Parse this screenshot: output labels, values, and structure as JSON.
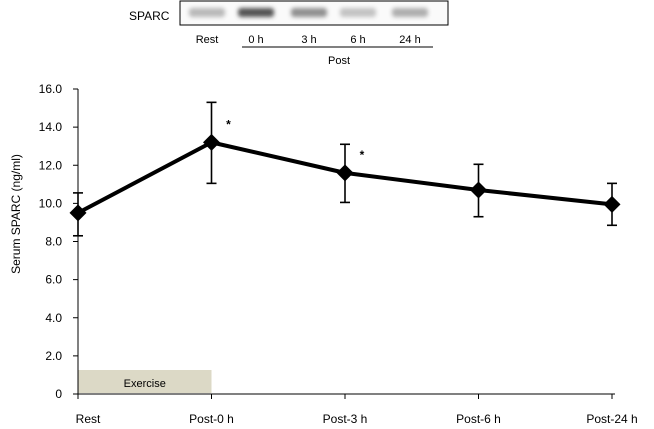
{
  "blot": {
    "protein_label": "SPARC",
    "lanes": [
      "Rest",
      "0 h",
      "3 h",
      "6 h",
      "24 h"
    ],
    "post_label": "Post",
    "band_intensities": [
      0.35,
      0.85,
      0.55,
      0.3,
      0.4
    ]
  },
  "chart_data": {
    "type": "line",
    "categories": [
      "Rest",
      "Post-0 h",
      "Post-3 h",
      "Post-6 h",
      "Post-24 h"
    ],
    "series": [
      {
        "values": [
          9.5,
          13.2,
          11.6,
          10.7,
          9.95
        ],
        "error_low": [
          8.3,
          11.05,
          10.05,
          9.3,
          8.85
        ],
        "error_high": [
          10.55,
          15.3,
          13.1,
          12.05,
          11.05
        ],
        "color": "#000000",
        "marker": "diamond"
      }
    ],
    "ylabel": "Serum SPARC (ng/ml)",
    "xlabel": "",
    "ylim": [
      0,
      16
    ],
    "ytick_values": [
      0,
      2,
      4,
      6,
      8,
      10,
      12,
      14,
      16
    ],
    "ytick_labels": [
      "0",
      "2.0",
      "4.0",
      "6.0",
      "8.0",
      "10.0",
      "12.0",
      "14.0",
      "16.0"
    ],
    "significance": [
      {
        "category": "Post-0 h",
        "text": "*"
      },
      {
        "category": "Post-3 h",
        "text": "*"
      }
    ],
    "exercise_bar": {
      "label": "Exercise",
      "from": "Rest",
      "to": "Post-0 h",
      "color": "#dcd9c6"
    },
    "grid": false,
    "legend": "none"
  }
}
